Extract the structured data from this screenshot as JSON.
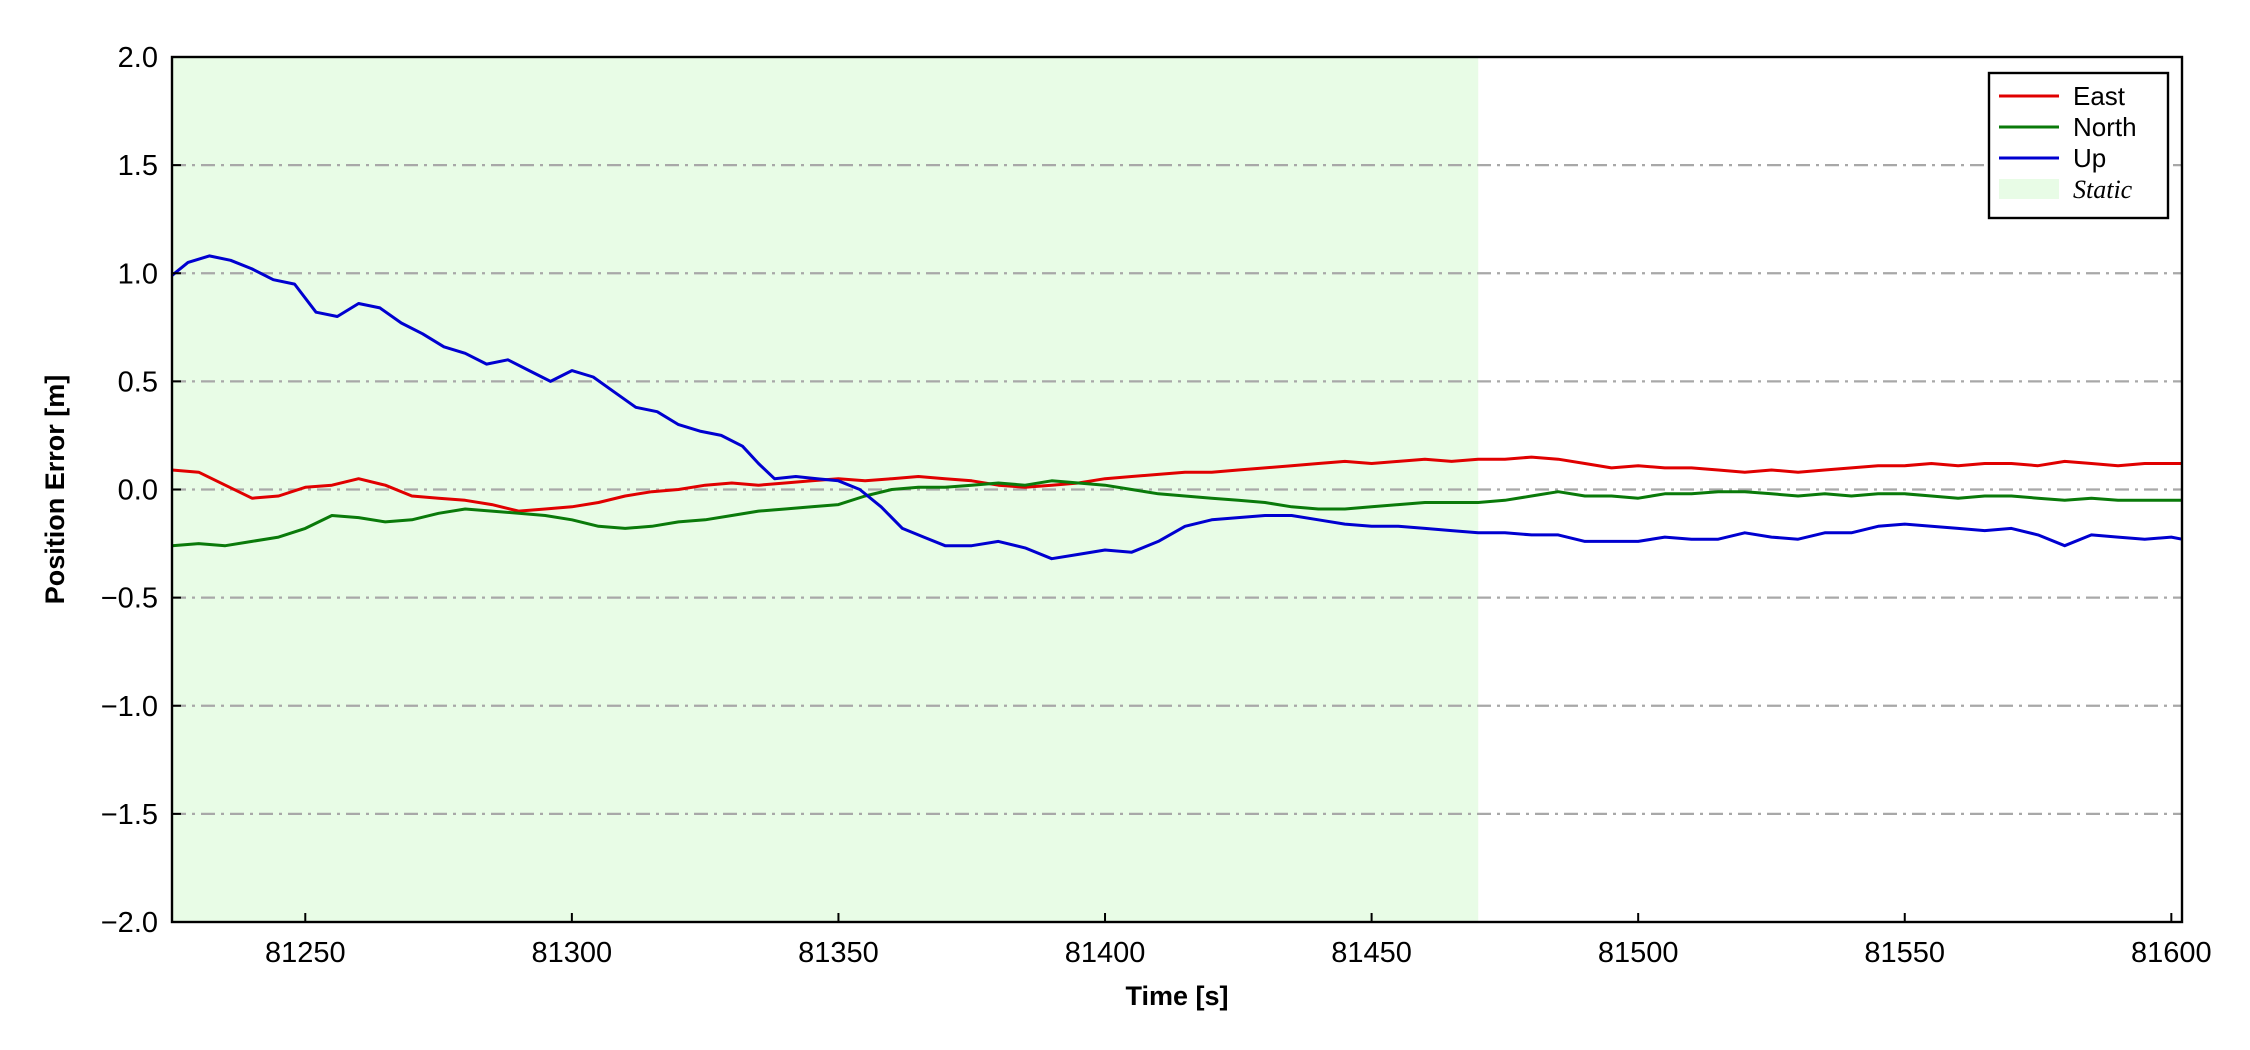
{
  "chart_data": {
    "type": "line",
    "xlabel": "Time [s]",
    "ylabel": "Position Error [m]",
    "xlim": [
      81225,
      81602
    ],
    "ylim": [
      -2.0,
      2.0
    ],
    "xticks": [
      81250,
      81300,
      81350,
      81400,
      81450,
      81500,
      81550,
      81600
    ],
    "yticks": [
      -2.0,
      -1.5,
      -1.0,
      -0.5,
      0.0,
      0.5,
      1.0,
      1.5,
      2.0
    ],
    "ytick_labels": [
      "−2.0",
      "−1.5",
      "−1.0",
      "−0.5",
      "0.0",
      "0.5",
      "1.0",
      "1.5",
      "2.0"
    ],
    "xtick_labels": [
      "81250",
      "81300",
      "81350",
      "81400",
      "81450",
      "81500",
      "81550",
      "81600"
    ],
    "grid": "horizontal dash-dot",
    "legend_position": "top-right",
    "shaded_regions": [
      {
        "name": "Static",
        "x0": 81225,
        "x1": 81470,
        "color": "#e8fce6"
      }
    ],
    "series": [
      {
        "name": "East",
        "color": "#e00000",
        "x": [
          81225,
          81230,
          81235,
          81240,
          81245,
          81250,
          81255,
          81260,
          81265,
          81270,
          81275,
          81280,
          81285,
          81290,
          81295,
          81300,
          81305,
          81310,
          81315,
          81320,
          81325,
          81330,
          81335,
          81340,
          81345,
          81350,
          81355,
          81360,
          81365,
          81370,
          81375,
          81380,
          81385,
          81390,
          81395,
          81400,
          81405,
          81410,
          81415,
          81420,
          81425,
          81430,
          81435,
          81440,
          81445,
          81450,
          81455,
          81460,
          81465,
          81470,
          81475,
          81480,
          81485,
          81490,
          81495,
          81500,
          81505,
          81510,
          81515,
          81520,
          81525,
          81530,
          81535,
          81540,
          81545,
          81550,
          81555,
          81560,
          81565,
          81570,
          81575,
          81580,
          81585,
          81590,
          81595,
          81600,
          81602
        ],
        "values": [
          0.09,
          0.08,
          0.02,
          -0.04,
          -0.03,
          0.01,
          0.02,
          0.05,
          0.02,
          -0.03,
          -0.04,
          -0.05,
          -0.07,
          -0.1,
          -0.09,
          -0.08,
          -0.06,
          -0.03,
          -0.01,
          0.0,
          0.02,
          0.03,
          0.02,
          0.03,
          0.04,
          0.05,
          0.04,
          0.05,
          0.06,
          0.05,
          0.04,
          0.02,
          0.01,
          0.02,
          0.03,
          0.05,
          0.06,
          0.07,
          0.08,
          0.08,
          0.09,
          0.1,
          0.11,
          0.12,
          0.13,
          0.12,
          0.13,
          0.14,
          0.13,
          0.14,
          0.14,
          0.15,
          0.14,
          0.12,
          0.1,
          0.11,
          0.1,
          0.1,
          0.09,
          0.08,
          0.09,
          0.08,
          0.09,
          0.1,
          0.11,
          0.11,
          0.12,
          0.11,
          0.12,
          0.12,
          0.11,
          0.13,
          0.12,
          0.11,
          0.12,
          0.12,
          0.12
        ]
      },
      {
        "name": "North",
        "color": "#0a7a0a",
        "x": [
          81225,
          81230,
          81235,
          81240,
          81245,
          81250,
          81255,
          81260,
          81265,
          81270,
          81275,
          81280,
          81285,
          81290,
          81295,
          81300,
          81305,
          81310,
          81315,
          81320,
          81325,
          81330,
          81335,
          81340,
          81345,
          81350,
          81355,
          81360,
          81365,
          81370,
          81375,
          81380,
          81385,
          81390,
          81395,
          81400,
          81405,
          81410,
          81415,
          81420,
          81425,
          81430,
          81435,
          81440,
          81445,
          81450,
          81455,
          81460,
          81465,
          81470,
          81475,
          81480,
          81485,
          81490,
          81495,
          81500,
          81505,
          81510,
          81515,
          81520,
          81525,
          81530,
          81535,
          81540,
          81545,
          81550,
          81555,
          81560,
          81565,
          81570,
          81575,
          81580,
          81585,
          81590,
          81595,
          81600,
          81602
        ],
        "values": [
          -0.26,
          -0.25,
          -0.26,
          -0.24,
          -0.22,
          -0.18,
          -0.12,
          -0.13,
          -0.15,
          -0.14,
          -0.11,
          -0.09,
          -0.1,
          -0.11,
          -0.12,
          -0.14,
          -0.17,
          -0.18,
          -0.17,
          -0.15,
          -0.14,
          -0.12,
          -0.1,
          -0.09,
          -0.08,
          -0.07,
          -0.03,
          0.0,
          0.01,
          0.01,
          0.02,
          0.03,
          0.02,
          0.04,
          0.03,
          0.02,
          0.0,
          -0.02,
          -0.03,
          -0.04,
          -0.05,
          -0.06,
          -0.08,
          -0.09,
          -0.09,
          -0.08,
          -0.07,
          -0.06,
          -0.06,
          -0.06,
          -0.05,
          -0.03,
          -0.01,
          -0.03,
          -0.03,
          -0.04,
          -0.02,
          -0.02,
          -0.01,
          -0.01,
          -0.02,
          -0.03,
          -0.02,
          -0.03,
          -0.02,
          -0.02,
          -0.03,
          -0.04,
          -0.03,
          -0.03,
          -0.04,
          -0.05,
          -0.04,
          -0.05,
          -0.05,
          -0.05,
          -0.05
        ]
      },
      {
        "name": "Up",
        "color": "#0000d0",
        "x": [
          81225,
          81228,
          81232,
          81236,
          81240,
          81244,
          81248,
          81252,
          81256,
          81260,
          81264,
          81268,
          81272,
          81276,
          81280,
          81284,
          81288,
          81292,
          81296,
          81300,
          81304,
          81308,
          81312,
          81316,
          81320,
          81324,
          81328,
          81332,
          81335,
          81338,
          81342,
          81346,
          81350,
          81354,
          81358,
          81362,
          81366,
          81370,
          81375,
          81380,
          81385,
          81390,
          81395,
          81400,
          81405,
          81410,
          81415,
          81420,
          81425,
          81430,
          81435,
          81440,
          81445,
          81450,
          81455,
          81460,
          81465,
          81470,
          81475,
          81480,
          81485,
          81490,
          81495,
          81500,
          81505,
          81510,
          81515,
          81520,
          81525,
          81530,
          81535,
          81540,
          81545,
          81550,
          81555,
          81560,
          81565,
          81570,
          81575,
          81580,
          81585,
          81590,
          81595,
          81600,
          81602
        ],
        "values": [
          0.99,
          1.05,
          1.08,
          1.06,
          1.02,
          0.97,
          0.95,
          0.82,
          0.8,
          0.86,
          0.84,
          0.77,
          0.72,
          0.66,
          0.63,
          0.58,
          0.6,
          0.55,
          0.5,
          0.55,
          0.52,
          0.45,
          0.38,
          0.36,
          0.3,
          0.27,
          0.25,
          0.2,
          0.12,
          0.05,
          0.06,
          0.05,
          0.04,
          0.0,
          -0.08,
          -0.18,
          -0.22,
          -0.26,
          -0.26,
          -0.24,
          -0.27,
          -0.32,
          -0.3,
          -0.28,
          -0.29,
          -0.24,
          -0.17,
          -0.14,
          -0.13,
          -0.12,
          -0.12,
          -0.14,
          -0.16,
          -0.17,
          -0.17,
          -0.18,
          -0.19,
          -0.2,
          -0.2,
          -0.21,
          -0.21,
          -0.24,
          -0.24,
          -0.24,
          -0.22,
          -0.23,
          -0.23,
          -0.2,
          -0.22,
          -0.23,
          -0.2,
          -0.2,
          -0.17,
          -0.16,
          -0.17,
          -0.18,
          -0.19,
          -0.18,
          -0.21,
          -0.26,
          -0.21,
          -0.22,
          -0.23,
          -0.22,
          -0.23
        ]
      }
    ]
  }
}
